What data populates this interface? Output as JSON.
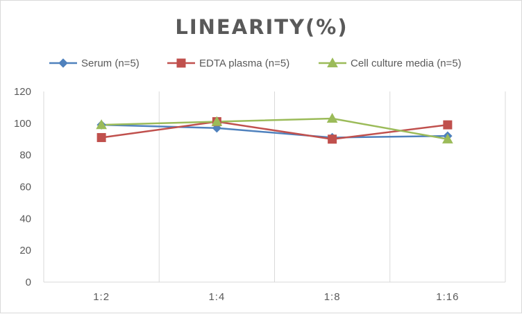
{
  "chart_data": {
    "type": "line",
    "title": "LINEARITY(%)",
    "categories": [
      "1:2",
      "1:4",
      "1:8",
      "1:16"
    ],
    "ylim": [
      0,
      120
    ],
    "yticks": [
      0,
      20,
      40,
      60,
      80,
      100,
      120
    ],
    "grid": "vertical category separators",
    "legend_position": "top",
    "series": [
      {
        "name": "Serum (n=5)",
        "values": [
          99,
          97,
          91,
          92
        ],
        "color": "#4f81bd",
        "marker": "diamond"
      },
      {
        "name": "EDTA plasma (n=5)",
        "values": [
          91,
          101,
          90,
          99
        ],
        "color": "#c0504d",
        "marker": "square"
      },
      {
        "name": "Cell culture media (n=5)",
        "values": [
          99,
          101,
          103,
          90
        ],
        "color": "#9bbb59",
        "marker": "triangle"
      }
    ]
  }
}
